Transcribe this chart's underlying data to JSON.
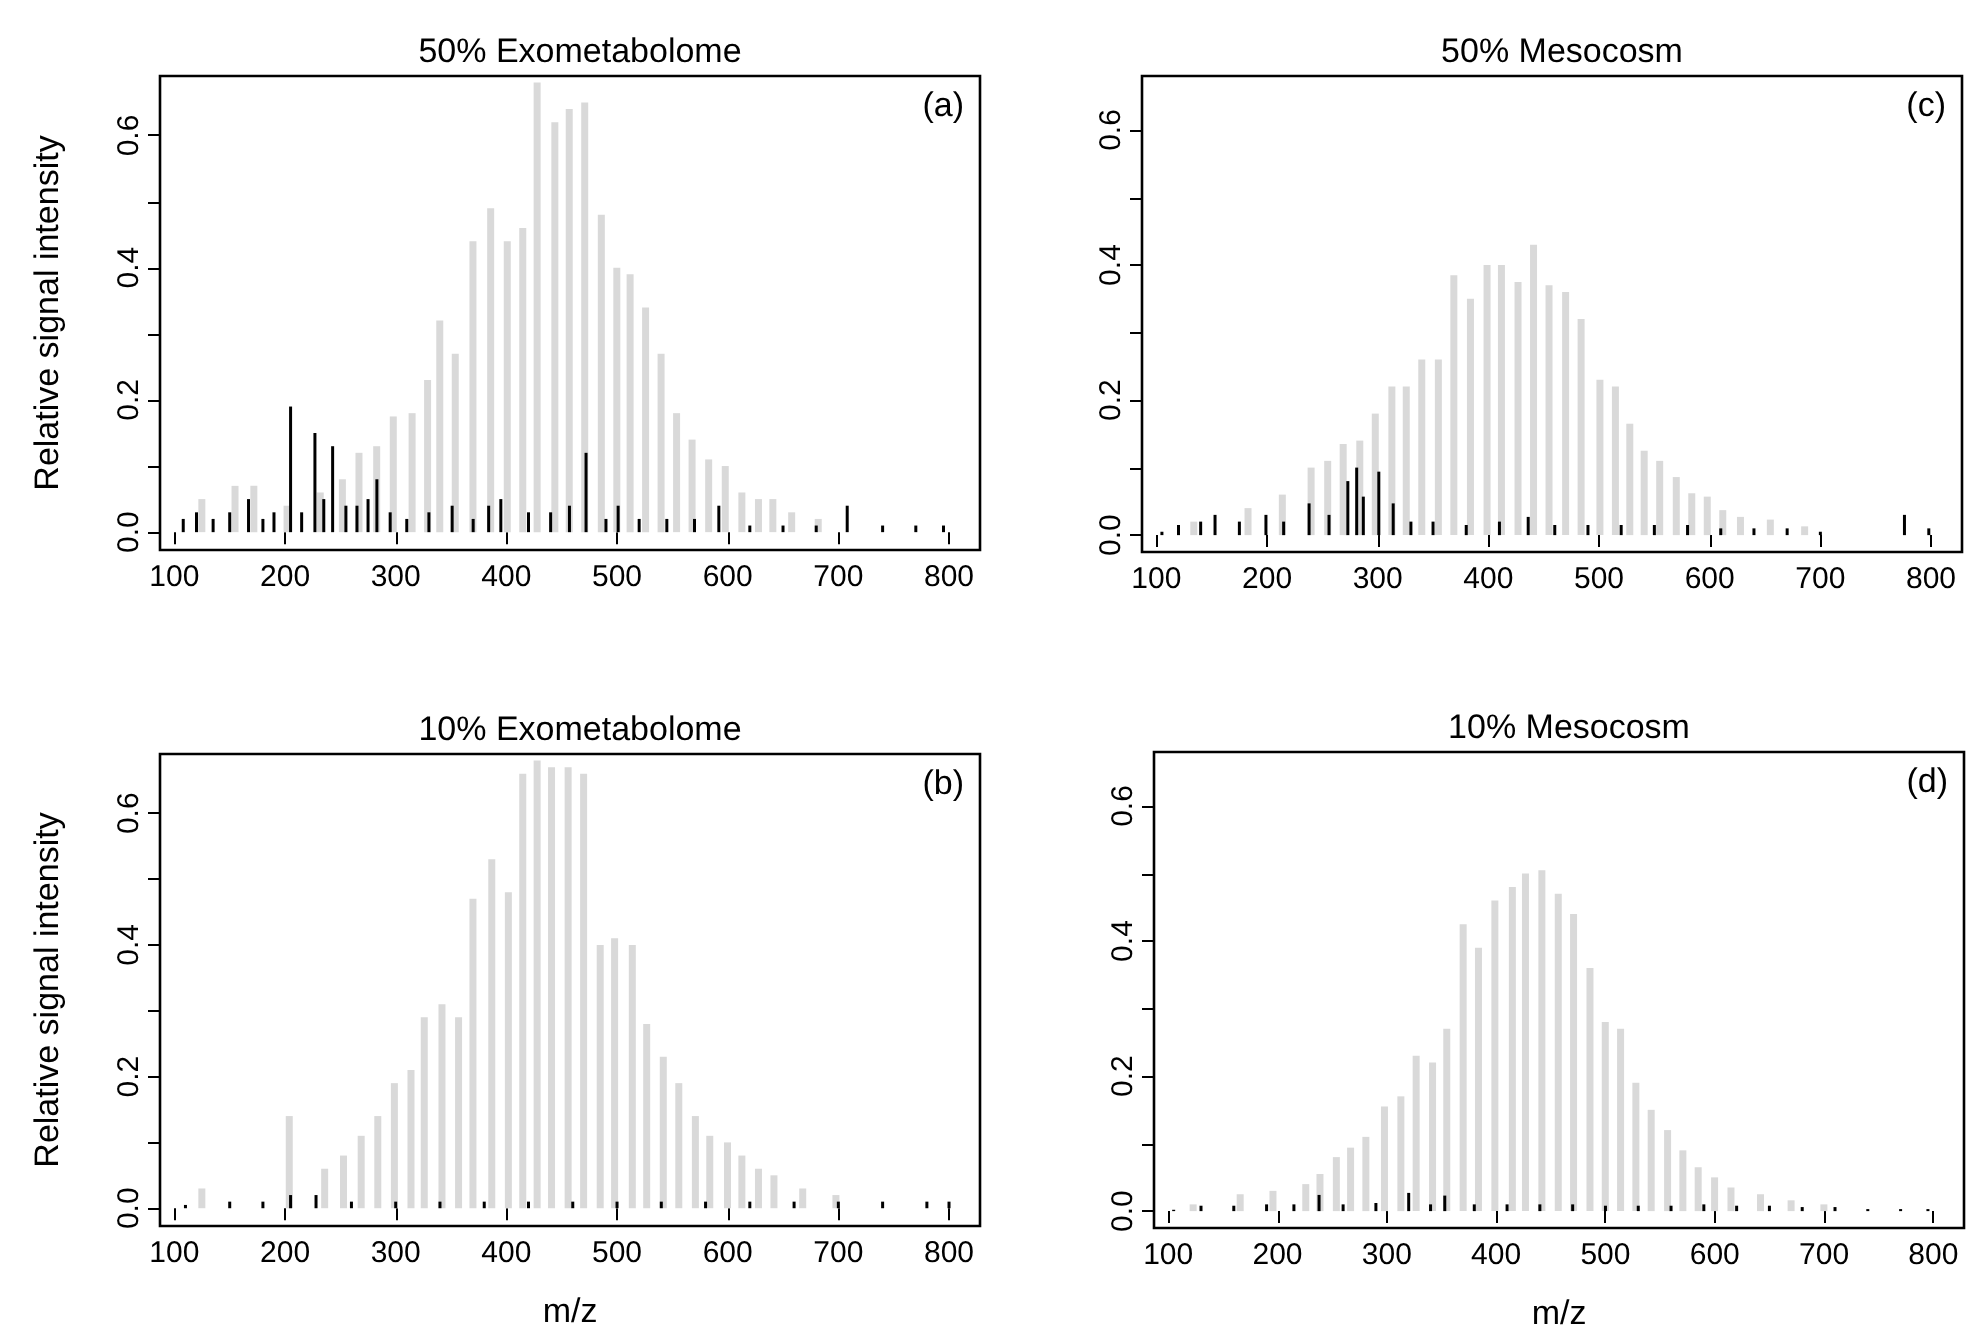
{
  "chart_data": [
    {
      "type": "bar",
      "title": "50% Exometabolome",
      "ylabel": "Relative signal intensity",
      "annotations": [
        "(a)"
      ],
      "xlim": [
        87,
        828
      ],
      "xticks": [
        100,
        200,
        300,
        400,
        500,
        600,
        700,
        800
      ],
      "ylim": [
        -0.027,
        0.69
      ],
      "yticks": [
        {
          "value": 0,
          "label": "0.0"
        },
        {
          "value": 0.1,
          "label": null
        },
        0.2,
        {
          "value": 0.3,
          "label": null
        },
        0.4,
        {
          "value": 0.5,
          "label": null
        },
        0.6
      ],
      "series": [
        {
          "color": "#d9d9d9",
          "x": [
            123,
            153,
            170,
            200,
            230,
            250,
            265,
            281,
            296,
            313,
            327,
            338,
            352,
            368,
            384,
            399,
            413,
            426,
            442,
            455,
            469,
            484,
            498,
            510,
            524,
            538,
            552,
            566,
            581,
            596,
            611,
            626,
            639,
            656,
            680
          ],
          "values": [
            0.05,
            0.07,
            0.07,
            0.04,
            0.06,
            0.08,
            0.12,
            0.13,
            0.175,
            0.18,
            0.23,
            0.32,
            0.27,
            0.44,
            0.49,
            0.44,
            0.46,
            0.68,
            0.62,
            0.64,
            0.65,
            0.48,
            0.4,
            0.39,
            0.34,
            0.27,
            0.18,
            0.14,
            0.11,
            0.1,
            0.06,
            0.05,
            0.05,
            0.03,
            0.02
          ]
        },
        {
          "color": "#000000",
          "x": [
            108,
            120,
            135,
            150,
            167,
            180,
            190,
            205,
            215,
            227,
            235,
            243,
            255,
            265,
            275,
            283,
            295,
            310,
            330,
            351,
            370,
            384,
            395,
            420,
            440,
            457,
            472,
            490,
            501,
            520,
            545,
            570,
            592,
            620,
            650,
            680,
            708,
            740,
            770,
            795
          ],
          "values": [
            0.02,
            0.03,
            0.02,
            0.03,
            0.05,
            0.02,
            0.03,
            0.19,
            0.03,
            0.15,
            0.05,
            0.13,
            0.04,
            0.04,
            0.05,
            0.08,
            0.03,
            0.02,
            0.03,
            0.04,
            0.02,
            0.04,
            0.05,
            0.03,
            0.03,
            0.04,
            0.12,
            0.02,
            0.04,
            0.02,
            0.02,
            0.02,
            0.04,
            0.01,
            0.01,
            0.01,
            0.04,
            0.01,
            0.01,
            0.01
          ]
        }
      ]
    },
    {
      "type": "bar",
      "title": "50% Mesocosm",
      "annotations": [
        "(c)"
      ],
      "xlim": [
        87,
        828
      ],
      "xticks": [
        100,
        200,
        300,
        400,
        500,
        600,
        700,
        800
      ],
      "ylim": [
        -0.025,
        0.68
      ],
      "yticks": [
        {
          "value": 0,
          "label": "0.0"
        },
        {
          "value": 0.1,
          "label": null
        },
        0.2,
        {
          "value": 0.3,
          "label": null
        },
        0.4,
        {
          "value": 0.5,
          "label": null
        },
        0.6
      ],
      "series": [
        {
          "color": "#d9d9d9",
          "x": [
            132,
            181,
            212,
            238,
            253,
            267,
            282,
            296,
            311,
            324,
            338,
            353,
            367,
            382,
            397,
            410,
            425,
            439,
            453,
            468,
            482,
            499,
            513,
            526,
            539,
            553,
            568,
            582,
            596,
            610,
            626,
            653,
            684
          ],
          "values": [
            0.02,
            0.04,
            0.06,
            0.1,
            0.11,
            0.135,
            0.14,
            0.18,
            0.22,
            0.22,
            0.26,
            0.26,
            0.385,
            0.35,
            0.4,
            0.4,
            0.375,
            0.43,
            0.37,
            0.36,
            0.32,
            0.23,
            0.22,
            0.165,
            0.125,
            0.11,
            0.086,
            0.062,
            0.057,
            0.037,
            0.027,
            0.023,
            0.013
          ]
        },
        {
          "color": "#000000",
          "x": [
            105,
            120,
            140,
            153,
            175,
            199,
            215,
            238,
            256,
            273,
            281,
            287,
            301,
            314,
            330,
            350,
            380,
            410,
            436,
            460,
            490,
            520,
            550,
            580,
            610,
            640,
            670,
            700,
            776,
            798
          ],
          "values": [
            0.005,
            0.015,
            0.02,
            0.03,
            0.02,
            0.03,
            0.02,
            0.047,
            0.03,
            0.08,
            0.1,
            0.057,
            0.094,
            0.047,
            0.02,
            0.02,
            0.015,
            0.02,
            0.027,
            0.015,
            0.015,
            0.015,
            0.015,
            0.015,
            0.01,
            0.01,
            0.01,
            0.005,
            0.03,
            0.01
          ]
        }
      ]
    },
    {
      "type": "bar",
      "title": "10% Exometabolome",
      "xlabel": "m/z",
      "ylabel": "Relative signal intensity",
      "annotations": [
        "(b)"
      ],
      "xlim": [
        87,
        828
      ],
      "xticks": [
        100,
        200,
        300,
        400,
        500,
        600,
        700,
        800
      ],
      "ylim": [
        -0.027,
        0.69
      ],
      "yticks": [
        {
          "value": 0,
          "label": "0.0"
        },
        {
          "value": 0.1,
          "label": null
        },
        0.2,
        {
          "value": 0.3,
          "label": null
        },
        0.4,
        {
          "value": 0.5,
          "label": null
        },
        0.6
      ],
      "series": [
        {
          "color": "#d9d9d9",
          "x": [
            123,
            202,
            234,
            251,
            267,
            282,
            297,
            312,
            324,
            340,
            355,
            368,
            385,
            400,
            413,
            426,
            439,
            454,
            468,
            483,
            496,
            512,
            525,
            540,
            554,
            569,
            582,
            598,
            611,
            626,
            640,
            666,
            696
          ],
          "values": [
            0.03,
            0.14,
            0.06,
            0.08,
            0.11,
            0.14,
            0.19,
            0.21,
            0.29,
            0.31,
            0.29,
            0.47,
            0.53,
            0.48,
            0.66,
            0.68,
            0.67,
            0.67,
            0.66,
            0.4,
            0.41,
            0.4,
            0.28,
            0.23,
            0.19,
            0.14,
            0.11,
            0.1,
            0.08,
            0.06,
            0.05,
            0.03,
            0.02
          ]
        },
        {
          "color": "#000000",
          "x": [
            110,
            150,
            180,
            205,
            228,
            260,
            300,
            340,
            380,
            420,
            460,
            500,
            540,
            580,
            620,
            660,
            700,
            740,
            780,
            800
          ],
          "values": [
            0.005,
            0.01,
            0.01,
            0.02,
            0.02,
            0.01,
            0.01,
            0.01,
            0.01,
            0.01,
            0.01,
            0.01,
            0.01,
            0.01,
            0.01,
            0.01,
            0.01,
            0.01,
            0.01,
            0.01
          ]
        }
      ]
    },
    {
      "type": "bar",
      "title": "10% Mesocosm",
      "xlabel": "m/z",
      "annotations": [
        "(d)"
      ],
      "xlim": [
        87,
        828
      ],
      "xticks": [
        100,
        200,
        300,
        400,
        500,
        600,
        700,
        800
      ],
      "ylim": [
        -0.025,
        0.68
      ],
      "yticks": [
        {
          "value": 0,
          "label": "0.0"
        },
        {
          "value": 0.1,
          "label": null
        },
        0.2,
        {
          "value": 0.3,
          "label": null
        },
        0.4,
        {
          "value": 0.5,
          "label": null
        },
        0.6
      ],
      "series": [
        {
          "color": "#d9d9d9",
          "x": [
            121,
            164,
            194,
            224,
            237,
            252,
            265,
            279,
            296,
            311,
            325,
            340,
            353,
            368,
            382,
            397,
            413,
            425,
            440,
            455,
            469,
            484,
            498,
            512,
            526,
            540,
            555,
            569,
            583,
            598,
            613,
            640,
            668,
            698
          ],
          "values": [
            0.01,
            0.025,
            0.03,
            0.04,
            0.055,
            0.08,
            0.094,
            0.11,
            0.155,
            0.17,
            0.23,
            0.22,
            0.27,
            0.425,
            0.39,
            0.46,
            0.48,
            0.5,
            0.505,
            0.47,
            0.44,
            0.36,
            0.28,
            0.27,
            0.19,
            0.15,
            0.12,
            0.09,
            0.065,
            0.05,
            0.035,
            0.025,
            0.016,
            0.01
          ]
        },
        {
          "color": "#000000",
          "x": [
            105,
            130,
            160,
            190,
            215,
            238,
            260,
            290,
            320,
            340,
            353,
            380,
            410,
            440,
            470,
            500,
            530,
            560,
            590,
            620,
            650,
            680,
            710,
            740,
            770,
            795
          ],
          "values": [
            0.002,
            0.008,
            0.008,
            0.01,
            0.01,
            0.024,
            0.01,
            0.012,
            0.027,
            0.01,
            0.023,
            0.01,
            0.01,
            0.01,
            0.01,
            0.008,
            0.008,
            0.008,
            0.01,
            0.008,
            0.008,
            0.006,
            0.006,
            0.003,
            0.003,
            0.003
          ]
        }
      ]
    }
  ]
}
